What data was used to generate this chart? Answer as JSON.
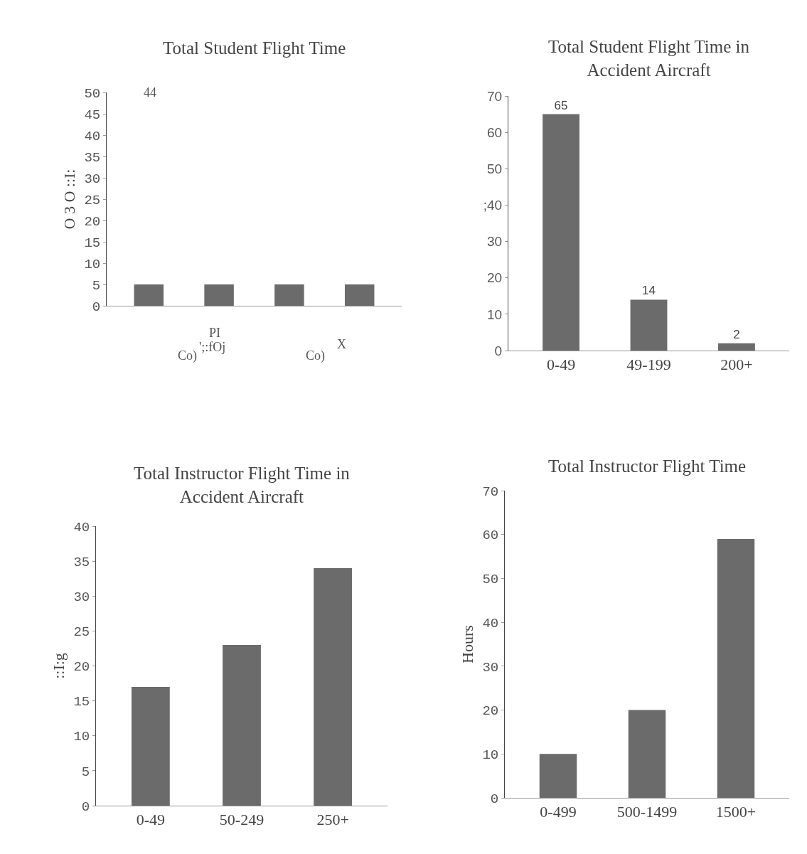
{
  "chart_data": [
    {
      "type": "bar",
      "title": "Total Student Flight Time",
      "ylabel": "O 3 O ::I:",
      "categories": [
        null,
        null,
        null,
        null
      ],
      "values": [
        5,
        5,
        5,
        5
      ],
      "color": "#6b6b6b",
      "ylim": [
        0,
        50
      ],
      "yticks": [
        0,
        5,
        10,
        15,
        20,
        25,
        30,
        35,
        40,
        45,
        50
      ],
      "annotations": [
        "44",
        "PI",
        "';:fOj",
        "Co)",
        "Co)",
        "X"
      ]
    },
    {
      "type": "bar",
      "title": "Total Student Flight Time in Accident Aircraft",
      "categories": [
        "0-49",
        "49-199",
        "200+"
      ],
      "values": [
        65,
        14,
        2
      ],
      "color": "#6b6b6b",
      "ylim": [
        0,
        70
      ],
      "yticks": [
        0,
        10,
        20,
        30,
        {
          "value": 40,
          "label": ";40"
        },
        50,
        60,
        70
      ],
      "data_labels": true
    },
    {
      "type": "bar",
      "title": "Total Instructor Flight Time in Accident Aircraft",
      "ylabel": "::I:g",
      "categories": [
        "0-49",
        "50-249",
        "250+"
      ],
      "values": [
        17,
        23,
        34
      ],
      "color": "#6b6b6b",
      "ylim": [
        0,
        40
      ],
      "yticks": [
        0,
        5,
        10,
        15,
        20,
        25,
        30,
        35,
        40
      ]
    },
    {
      "type": "bar",
      "title": "Total Instructor Flight Time",
      "ylabel": "Hours",
      "categories": [
        "0-499",
        "500-1499",
        "1500+"
      ],
      "values": [
        10,
        20,
        59
      ],
      "color": "#6b6b6b",
      "ylim": [
        0,
        70
      ],
      "yticks": [
        0,
        10,
        20,
        30,
        40,
        50,
        60,
        70
      ]
    }
  ]
}
